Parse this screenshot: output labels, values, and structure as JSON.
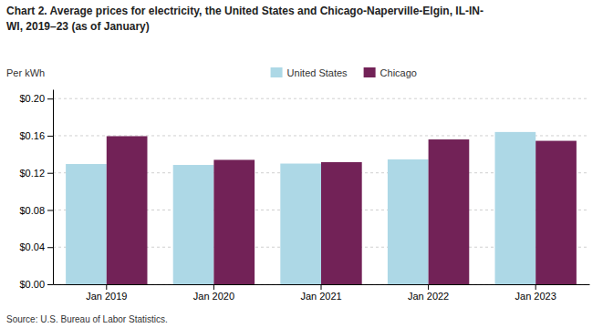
{
  "chart_data": {
    "type": "bar",
    "title": "Chart 2. Average prices for electricity, the United States and Chicago-Naperville-Elgin, IL-IN-\nWI, 2019–23 (as of January)",
    "ylabel": "Per kWh",
    "source": "Source: U.S. Bureau of Labor Statistics.",
    "categories": [
      "Jan 2019",
      "Jan 2020",
      "Jan 2021",
      "Jan 2022",
      "Jan 2023"
    ],
    "series": [
      {
        "name": "United States",
        "color": "#add8e6",
        "values": [
          0.1295,
          0.1285,
          0.13,
          0.1345,
          0.164
        ]
      },
      {
        "name": "Chicago",
        "color": "#722257",
        "values": [
          0.1595,
          0.134,
          0.1315,
          0.156,
          0.1545
        ]
      }
    ],
    "ylim": [
      0,
      0.21
    ],
    "yticks": [
      {
        "value": 0.0,
        "label": "$0.00"
      },
      {
        "value": 0.04,
        "label": "$0.04"
      },
      {
        "value": 0.08,
        "label": "$0.08"
      },
      {
        "value": 0.12,
        "label": "$0.12"
      },
      {
        "value": 0.16,
        "label": "$0.16"
      },
      {
        "value": 0.2,
        "label": "$0.20"
      }
    ],
    "grid": true,
    "legend": "top"
  }
}
